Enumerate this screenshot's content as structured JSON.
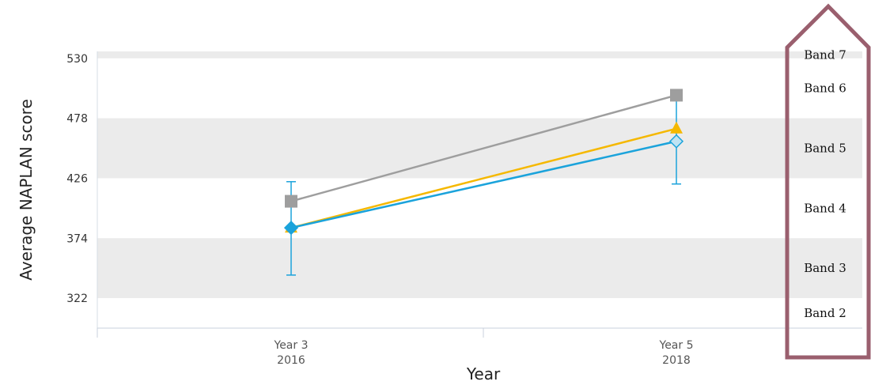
{
  "chart_data": {
    "type": "line",
    "xlabel": "Year",
    "ylabel": "Average NAPLAN score",
    "ylim": [
      296,
      536
    ],
    "yticks": [
      322,
      374,
      426,
      478,
      530
    ],
    "categories": [
      {
        "line1": "Year 3",
        "line2": "2016"
      },
      {
        "line1": "Year 5",
        "line2": "2018"
      }
    ],
    "series": [
      {
        "marker": "square",
        "color": "#9E9E9E",
        "values": [
          406,
          498
        ]
      },
      {
        "marker": "triangle",
        "color": "#F5B800",
        "values": [
          383,
          469
        ]
      },
      {
        "marker": "diamond",
        "color": "#1BA3DB",
        "values": [
          383,
          458
        ],
        "error_bars": [
          [
            342,
            423
          ],
          [
            421,
            497
          ]
        ]
      }
    ],
    "bands": [
      {
        "label": "Band 2",
        "from": 296,
        "to": 322,
        "shaded": false
      },
      {
        "label": "Band 3",
        "from": 322,
        "to": 374,
        "shaded": true
      },
      {
        "label": "Band 4",
        "from": 374,
        "to": 426,
        "shaded": false
      },
      {
        "label": "Band 5",
        "from": 426,
        "to": 478,
        "shaded": true
      },
      {
        "label": "Band 6",
        "from": 478,
        "to": 530,
        "shaded": false
      },
      {
        "label": "Band 7",
        "from": 530,
        "to": 536,
        "shaded": true
      }
    ],
    "grid": false,
    "legend": "none",
    "highlight_color": "#9A5F6E"
  }
}
